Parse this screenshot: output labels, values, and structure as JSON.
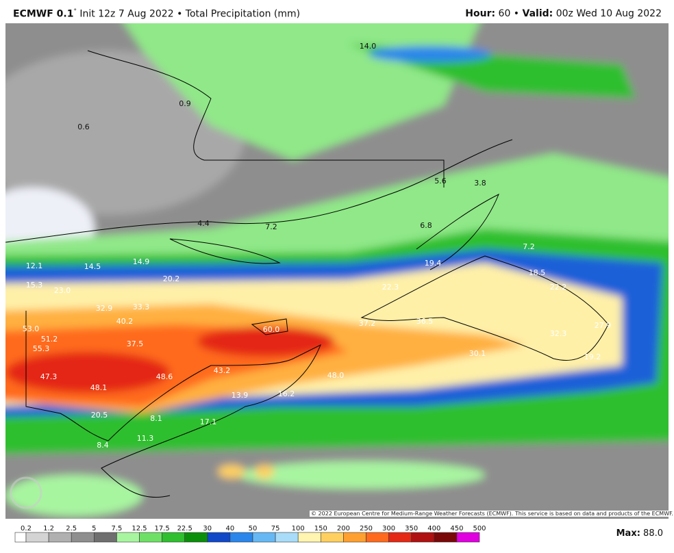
{
  "header": {
    "model": "ECMWF 0.1",
    "degree": "°",
    "description": "Init 12z 7 Aug 2022 • Total Precipitation (mm)",
    "hour_label": "Hour:",
    "hour": "60 •",
    "valid_label": "Valid:",
    "valid": "00z Wed 10 Aug 2022"
  },
  "map_labels": [
    "14.0",
    "0.9",
    "0.6",
    "5.6",
    "3.8",
    "4.4",
    "7.2",
    "6.8",
    "12.1",
    "14.5",
    "14.9",
    "19.4",
    "7.2",
    "18.5",
    "15.3",
    "23.0",
    "20.2",
    "22.3",
    "22.2",
    "32.9",
    "33.3",
    "40.2",
    "37.2",
    "36.5",
    "27.9",
    "53.0",
    "60.0",
    "51.2",
    "37.5",
    "32.3",
    "55.3",
    "30.1",
    "19.2",
    "47.3",
    "48.6",
    "48.1",
    "48.0",
    "43.2",
    "13.9",
    "16.2",
    "20.5",
    "8.1",
    "17.1",
    "11.3",
    "8.4"
  ],
  "copyright": "© 2022 European Centre for Medium-Range Weather Forecasts (ECMWF). This service is based on data and products of the ECMWF.",
  "colorbar": {
    "ticks": [
      0.2,
      1.2,
      2.5,
      5,
      7.5,
      12.5,
      17.5,
      22.5,
      30,
      40,
      50,
      75,
      100,
      150,
      200,
      250,
      300,
      350,
      400,
      450,
      500
    ],
    "colors": [
      "#ffffff",
      "#d4d4d4",
      "#b0b0b0",
      "#8e8e8e",
      "#6f6f6f",
      "#a8f5a0",
      "#6ee066",
      "#2fbf2f",
      "#0a8f0a",
      "#1048c8",
      "#2a86ea",
      "#66b8f4",
      "#a8dcf8",
      "#fff4b0",
      "#ffd060",
      "#ffa030",
      "#ff6a1e",
      "#e42814",
      "#b01010",
      "#7a0808",
      "#e000e0"
    ]
  },
  "max_label": "Max:",
  "max_value": "88.0"
}
